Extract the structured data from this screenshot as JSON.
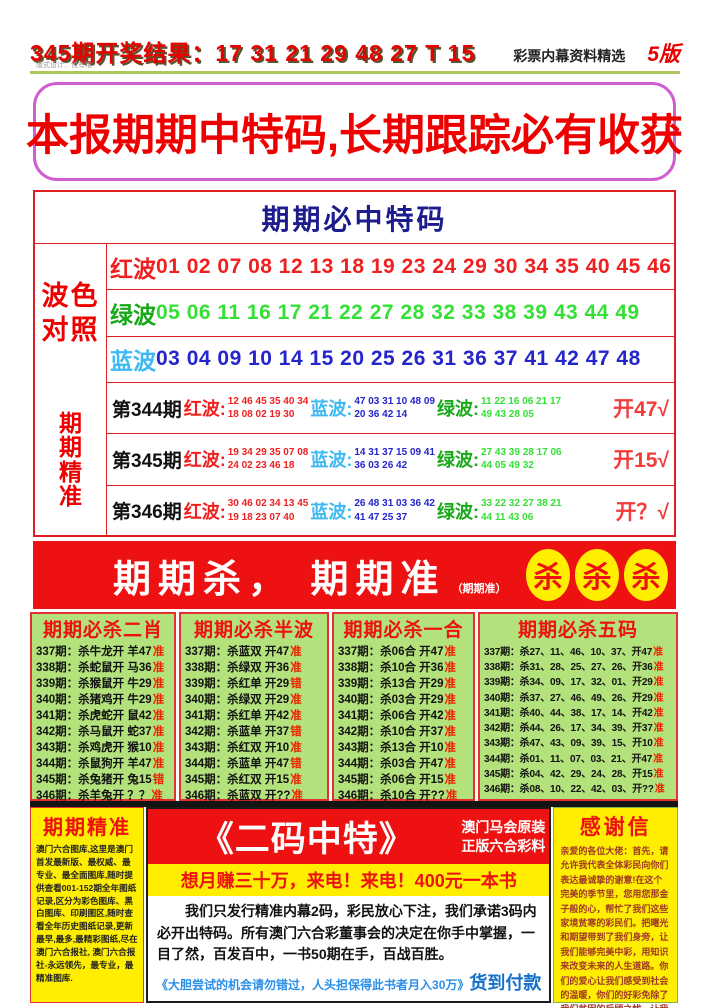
{
  "colors": {
    "accent_red": "#ee1111",
    "navy": "#1c1c8e",
    "yellow": "#ffee00",
    "light_green_bg": "#b3e27c",
    "pink_border": "#cf5ecf",
    "blue_note": "#2b8fe8"
  },
  "header": {
    "result_line": "345期开奖结果：17 31 21 29 48 27 T 15",
    "subtitle": "彩票内幕资料精选",
    "page": "5版",
    "designer": "版式设计：包有维"
  },
  "banner": {
    "text": "本报期期中特码,长期跟踪必有收获"
  },
  "must_hit": {
    "title": "期期必中特码",
    "bose1": "波色",
    "bose2": "对照",
    "jz": [
      "期",
      "期",
      "精",
      "准"
    ],
    "waves": [
      {
        "name": "红波",
        "numbers": "01 02 07 08 12 13 18 19 23 24 29 30 34 35 40 45 46"
      },
      {
        "name": "绿波",
        "numbers": "05  06 11 16  17 21 22 27 28  32 33 38 39 43 44 49"
      },
      {
        "name": "蓝波",
        "numbers": "03 04 09 10 14 15  20 25  26  31 36  37 41 42 47 48"
      }
    ],
    "red_label": "红波:",
    "blue_label": "蓝波:",
    "green_label": "绿波:",
    "periods": [
      {
        "label": "第344期",
        "red1": "12 46 45 35 40 34",
        "red2": "18 08 02 19 30",
        "blue1": "47 03 31 10 48 09",
        "blue2": "20 36 42 14",
        "green1": "11 22 16 06 21 17",
        "green2": "49 43 28 05",
        "result": "开47√"
      },
      {
        "label": "第345期",
        "red1": "19 34 29 35 07 08",
        "red2": "24 02 23 46 18",
        "blue1": "14 31 37 15 09 41",
        "blue2": "36 03 26 42",
        "green1": "27 43 39 28 17 06",
        "green2": "44 05 49 32",
        "result": "开15√"
      },
      {
        "label": "第346期",
        "red1": "30 46 02 34 13 45",
        "red2": "19 18 23 07 40",
        "blue1": "26 48 31 03 36 42",
        "blue2": "41 47 25 37",
        "green1": "33 22 32 27 38 21",
        "green2": "44 11 43 06",
        "result": "开？√"
      }
    ]
  },
  "kill_banner": {
    "main": "期期杀， 期期准",
    "sub": "（期期准）",
    "circles": [
      "杀",
      "杀",
      "杀"
    ]
  },
  "kill_columns": [
    {
      "title": "期期必杀二肖",
      "rows": [
        {
          "text": "337期：杀牛龙开 羊47",
          "verdict": "准"
        },
        {
          "text": "338期：杀蛇鼠开 马36",
          "verdict": "准"
        },
        {
          "text": "339期：杀猴鼠开 牛29",
          "verdict": "准"
        },
        {
          "text": "340期：杀猪鸡开 牛29",
          "verdict": "准"
        },
        {
          "text": "341期：杀虎蛇开 鼠42",
          "verdict": "准"
        },
        {
          "text": "342期：杀马鼠开 蛇37",
          "verdict": "准"
        },
        {
          "text": "343期：杀鸡虎开 猴10",
          "verdict": "准"
        },
        {
          "text": "344期：杀鼠狗开 羊47",
          "verdict": "准"
        },
        {
          "text": "345期：杀兔猪开 兔15",
          "verdict": "错"
        },
        {
          "text": "346期：杀羊兔开 ？？",
          "verdict": "准"
        }
      ]
    },
    {
      "title": "期期必杀半波",
      "rows": [
        {
          "text": "337期：杀蓝双 开47",
          "verdict": "准"
        },
        {
          "text": "338期：杀绿双 开36",
          "verdict": "准"
        },
        {
          "text": "339期：杀红单 开29",
          "verdict": "错"
        },
        {
          "text": "340期：杀绿双 开29",
          "verdict": "准"
        },
        {
          "text": "341期：杀红单 开42",
          "verdict": "准"
        },
        {
          "text": "342期：杀蓝单 开37",
          "verdict": "错"
        },
        {
          "text": "343期：杀红双 开10",
          "verdict": "准"
        },
        {
          "text": "344期：杀蓝单 开47",
          "verdict": "错"
        },
        {
          "text": "345期：杀红双 开15",
          "verdict": "准"
        },
        {
          "text": "346期：杀蓝双 开??",
          "verdict": "准"
        }
      ]
    },
    {
      "title": "期期必杀一合",
      "rows": [
        {
          "text": "337期：杀06合 开47",
          "verdict": "准"
        },
        {
          "text": "338期：杀10合 开36",
          "verdict": "准"
        },
        {
          "text": "339期：杀13合 开29",
          "verdict": "准"
        },
        {
          "text": "340期：杀03合 开29",
          "verdict": "准"
        },
        {
          "text": "341期：杀06合 开42",
          "verdict": "准"
        },
        {
          "text": "342期：杀10合 开37",
          "verdict": "准"
        },
        {
          "text": "343期：杀13合 开10",
          "verdict": "准"
        },
        {
          "text": "344期：杀03合 开47",
          "verdict": "准"
        },
        {
          "text": "345期：杀06合 开15",
          "verdict": "准"
        },
        {
          "text": "346期：杀10合 开??",
          "verdict": "准"
        }
      ]
    },
    {
      "title": "期期必杀五码",
      "rows": [
        {
          "text": "337期：杀27、11、46、10、37、开47",
          "verdict": "准"
        },
        {
          "text": "338期：杀31、28、25、27、26、开36",
          "verdict": "准"
        },
        {
          "text": "339期：杀34、09、17、32、01、开29",
          "verdict": "准"
        },
        {
          "text": "340期：杀37、27、46、49、26、开29",
          "verdict": "准"
        },
        {
          "text": "341期：杀40、44、38、17、14、开42",
          "verdict": "准"
        },
        {
          "text": "342期：杀44、26、17、34、39、开37",
          "verdict": "准"
        },
        {
          "text": "343期：杀47、43、09、39、15、开10",
          "verdict": "准"
        },
        {
          "text": "344期：杀01、11、07、03、21、开47",
          "verdict": "准"
        },
        {
          "text": "345期：杀04、42、29、24、28、开15",
          "verdict": "准"
        },
        {
          "text": "346期：杀08、10、22、42、03、开??",
          "verdict": "准"
        }
      ]
    }
  ],
  "bottom": {
    "left": {
      "title": "期期精准",
      "text": "澳门六合图库,这里是澳门首发最新版、最权威、最专业、最全面图库,随时提供查看001-152期全年图纸记录,区分为彩色图库、黑白图库、印刷图区,随时查看全年历史图纸记录,更新最早,最多,最精彩图纸,尽在澳门六合报社, 澳门六合报社-永远领先，最专业，最精准图库."
    },
    "center": {
      "title": "《二码中特》",
      "side1": "澳门马会原装",
      "side2": "正版六合彩料",
      "hotline": "想月赚三十万，来电！来电！400元一本书",
      "body": "我们只发行精准内幕2码，彩民放心下注，我们承诺3码内必开出特码。所有澳门六合彩董事会的决定在你手中掌握，一目了然，百发百中，一书50期在手，百战百胜。",
      "note": "《大胆尝试的机会请勿错过，人头担保得此书者月入30万》",
      "cod": "货到付款"
    },
    "right": {
      "title": "感谢信",
      "text": "亲爱的各位大佬：首先，请允许我代表全体彩民向你们表达最诚挚的谢意!在这个完美的季节里，您用您那金子般的心，帮忙了我们这些家境贫寒的彩民们。把曙光和期望带到了我们身旁，让我们能够完美中彩，用知识来改变未来的人生道路。你们的爱心让我们感受到社会的温暖，你们的好彩免除了我们贫困的后顾之忧，让我们渴望新生活的心倍受感"
    }
  }
}
